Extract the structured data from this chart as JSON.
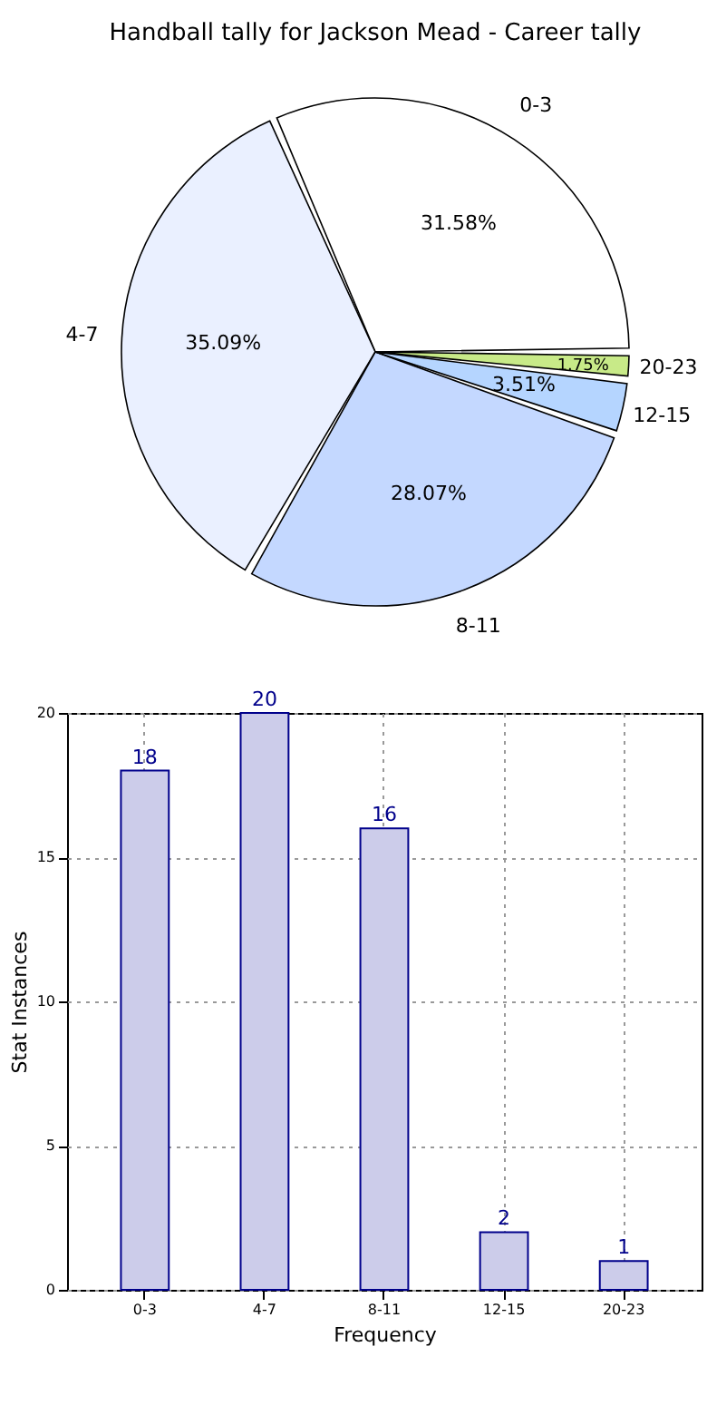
{
  "chart_data": [
    {
      "type": "pie",
      "title": "Handball tally for Jackson Mead - Career tally",
      "categories": [
        "0-3",
        "4-7",
        "8-11",
        "12-15",
        "20-23"
      ],
      "values": [
        31.58,
        35.09,
        28.07,
        3.51,
        1.75
      ],
      "value_labels": [
        "31.58%",
        "35.09%",
        "28.07%",
        "3.51%",
        "1.75%"
      ],
      "colors": [
        "#ffffff",
        "#eaf0ff",
        "#c4d8ff",
        "#b5d5ff",
        "#c8ea88"
      ]
    },
    {
      "type": "bar",
      "xlabel": "Frequency",
      "ylabel": "Stat Instances",
      "categories": [
        "0-3",
        "4-7",
        "8-11",
        "12-15",
        "20-23"
      ],
      "values": [
        18,
        20,
        16,
        2,
        1
      ],
      "color": "#ccccea",
      "data_labels": true,
      "ylim": [
        0,
        20
      ],
      "yticks": [
        0,
        5,
        10,
        15,
        20
      ],
      "grid": true
    }
  ]
}
